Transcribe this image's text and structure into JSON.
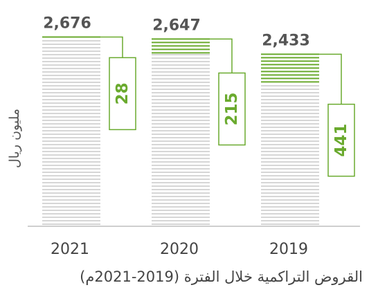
{
  "chart_data": {
    "type": "bar",
    "categories": [
      "2021",
      "2020",
      "2019"
    ],
    "series": [
      {
        "values": [
          2676,
          2647,
          2433
        ]
      }
    ],
    "callouts": [
      28,
      215,
      441
    ],
    "ylabel": "مليون ريال",
    "caption": "القروض التراكمية خلال الفترة (2019-2021م)",
    "grid": false,
    "colors": {
      "bar_lines": "#c8c8c8",
      "accent": "#6aaa2e",
      "axis": "#bdbdbd"
    }
  }
}
